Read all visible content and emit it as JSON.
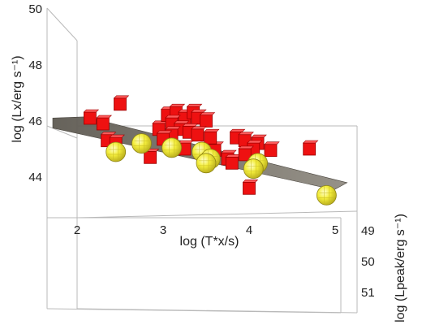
{
  "chart_data": {
    "type": "scatter",
    "dimensions": 3,
    "axes": {
      "x": {
        "label": "log (T*x/s)",
        "ticks": [
          2,
          3,
          4,
          5
        ],
        "range": [
          1.7,
          5.1
        ]
      },
      "y": {
        "label": "log (Lx/erg s⁻¹)",
        "ticks": [
          44,
          46,
          48,
          50
        ],
        "range": [
          42.8,
          50.2
        ]
      },
      "z": {
        "label": "log (Lpeak/erg s⁻¹)",
        "ticks": [
          49,
          50,
          51
        ],
        "range": [
          48.6,
          51.4
        ]
      }
    },
    "series": [
      {
        "marker": "cube",
        "color": "#ee1111",
        "points": [
          {
            "x": 2.15,
            "y": 46.1
          },
          {
            "x": 2.3,
            "y": 45.9
          },
          {
            "x": 2.5,
            "y": 46.6
          },
          {
            "x": 2.35,
            "y": 45.3
          },
          {
            "x": 2.45,
            "y": 45.2
          },
          {
            "x": 2.95,
            "y": 45.7
          },
          {
            "x": 3.05,
            "y": 46.2
          },
          {
            "x": 3.15,
            "y": 46.3
          },
          {
            "x": 3.25,
            "y": 46.1
          },
          {
            "x": 3.35,
            "y": 46.3
          },
          {
            "x": 3.4,
            "y": 46.1
          },
          {
            "x": 3.5,
            "y": 46.0
          },
          {
            "x": 3.1,
            "y": 45.9
          },
          {
            "x": 3.2,
            "y": 45.7
          },
          {
            "x": 3.3,
            "y": 45.6
          },
          {
            "x": 3.1,
            "y": 45.5
          },
          {
            "x": 3.0,
            "y": 45.35
          },
          {
            "x": 3.4,
            "y": 45.5
          },
          {
            "x": 2.85,
            "y": 44.7
          },
          {
            "x": 3.25,
            "y": 45.0
          },
          {
            "x": 3.45,
            "y": 44.9
          },
          {
            "x": 3.6,
            "y": 44.95
          },
          {
            "x": 3.75,
            "y": 44.65
          },
          {
            "x": 3.85,
            "y": 45.4
          },
          {
            "x": 3.95,
            "y": 45.3
          },
          {
            "x": 4.1,
            "y": 45.2
          },
          {
            "x": 4.05,
            "y": 45.0
          },
          {
            "x": 3.8,
            "y": 44.5
          },
          {
            "x": 4.25,
            "y": 44.95
          },
          {
            "x": 3.95,
            "y": 44.8
          },
          {
            "x": 4.7,
            "y": 45.0
          },
          {
            "x": 4.0,
            "y": 43.6
          },
          {
            "x": 3.55,
            "y": 45.4
          }
        ]
      },
      {
        "marker": "sphere",
        "color": "#f2ee3a",
        "points": [
          {
            "x": 2.45,
            "y": 44.9
          },
          {
            "x": 2.75,
            "y": 45.2
          },
          {
            "x": 3.1,
            "y": 45.05
          },
          {
            "x": 3.45,
            "y": 44.9
          },
          {
            "x": 3.55,
            "y": 44.65
          },
          {
            "x": 3.5,
            "y": 44.5
          },
          {
            "x": 4.1,
            "y": 44.5
          },
          {
            "x": 4.05,
            "y": 44.3
          },
          {
            "x": 4.9,
            "y": 43.35
          }
        ]
      }
    ],
    "plane": {
      "color": "#6f6a60"
    },
    "grid": false
  }
}
